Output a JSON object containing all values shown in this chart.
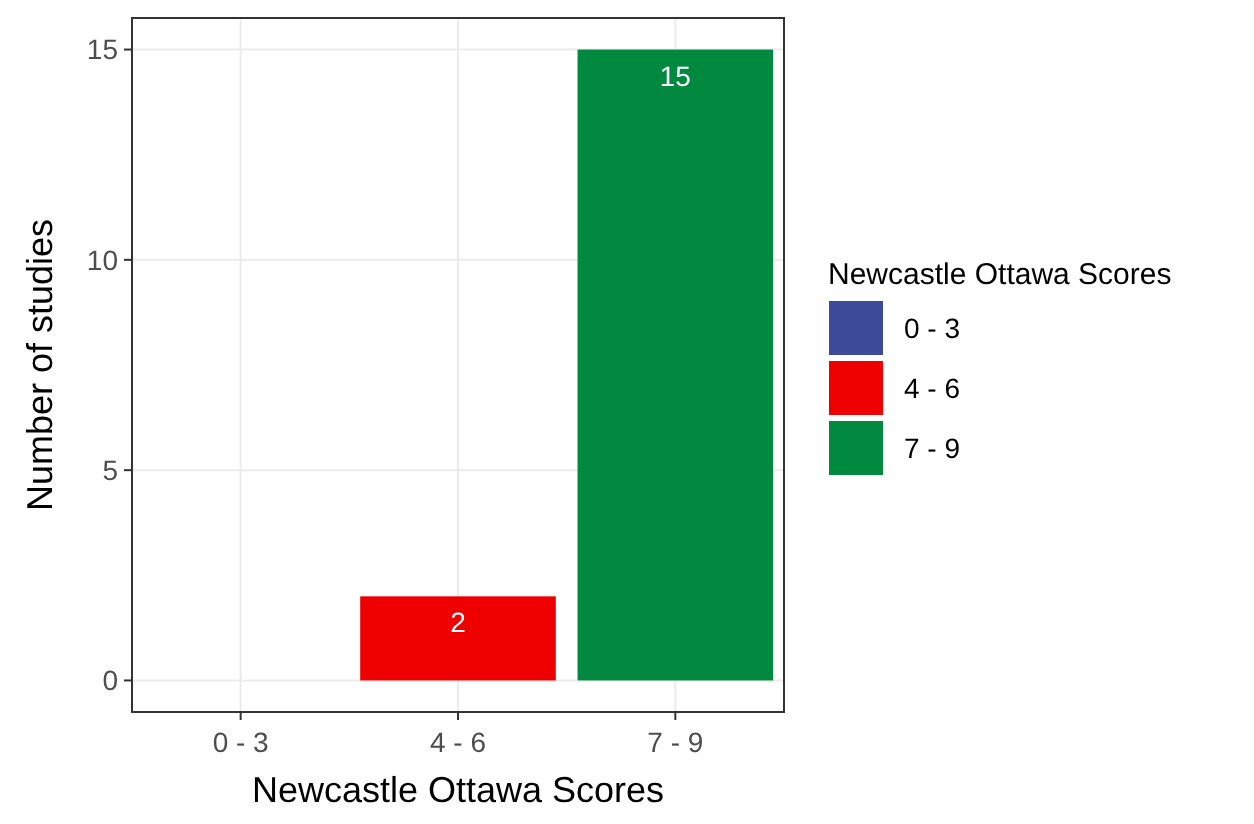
{
  "chart_data": {
    "type": "bar",
    "xlabel": "Newcastle Ottawa Scores",
    "ylabel": "Number of studies",
    "legend_title": "Newcastle Ottawa Scores",
    "categories": [
      "0 - 3",
      "4 - 6",
      "7 - 9"
    ],
    "series": [
      {
        "name": "0 - 3",
        "color": "#3c4a99",
        "values": [
          0,
          null,
          null
        ]
      },
      {
        "name": "4 - 6",
        "color": "#ee0000",
        "values": [
          null,
          2,
          null
        ],
        "value_labels": [
          null,
          "2",
          null
        ]
      },
      {
        "name": "7 - 9",
        "color": "#00893f",
        "values": [
          null,
          null,
          15
        ],
        "value_labels": [
          null,
          null,
          "15"
        ]
      }
    ],
    "ylim": [
      -0.75,
      15.75
    ],
    "yticks": [
      0,
      5,
      10,
      15
    ],
    "grid": true,
    "legend": "right"
  }
}
